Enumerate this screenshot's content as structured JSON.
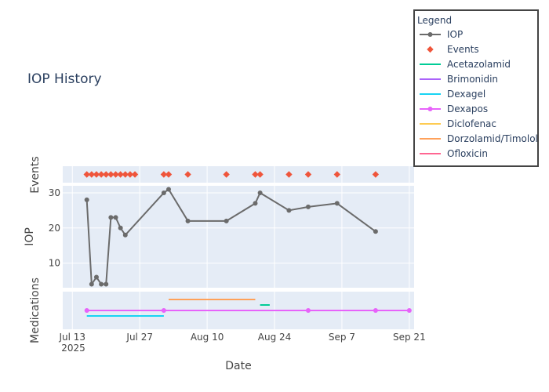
{
  "chart_data": {
    "type": "line",
    "title": "IOP History",
    "xlabel": "Date",
    "x_range": [
      "2025-07-11",
      "2025-09-22"
    ],
    "x_ticks": [
      {
        "date": "2025-07-13",
        "label": "Jul 13",
        "sublabel": "2025"
      },
      {
        "date": "2025-07-27",
        "label": "Jul 27",
        "sublabel": ""
      },
      {
        "date": "2025-08-10",
        "label": "Aug 10",
        "sublabel": ""
      },
      {
        "date": "2025-08-24",
        "label": "Aug 24",
        "sublabel": ""
      },
      {
        "date": "2025-09-07",
        "label": "Sep 7",
        "sublabel": ""
      },
      {
        "date": "2025-09-21",
        "label": "Sep 21",
        "sublabel": ""
      }
    ],
    "grid": true,
    "legend": {
      "title": "Legend",
      "position": "top-right",
      "entries": [
        "IOP",
        "Events",
        "Acetazolamid",
        "Brimonidin",
        "Dexagel",
        "Dexapos",
        "Diclofenac",
        "Dorzolamid/Timolol",
        "Ofloxicin"
      ]
    },
    "colors": {
      "IOP": "#6b6b6b",
      "Events": "#ef553b",
      "Acetazolamid": "#00cc96",
      "Brimonidin": "#ab63fa",
      "Dexagel": "#19d3f3",
      "Dexapos": "#ff6692",
      "Diclofenac": "#fecb52",
      "Dorzolamid/Timolol": "#ffa15a",
      "Ofloxicin": "#ff6692",
      "dexapos_line": "#e763fa",
      "plot_bg": "#e5ecf6",
      "grid": "#ffffff"
    },
    "panels": [
      {
        "id": "events",
        "ylabel": "Events",
        "series": [
          {
            "name": "Events",
            "mode": "markers",
            "marker": "diamond",
            "x": [
              "2025-07-16",
              "2025-07-17",
              "2025-07-18",
              "2025-07-19",
              "2025-07-20",
              "2025-07-21",
              "2025-07-22",
              "2025-07-23",
              "2025-07-24",
              "2025-07-25",
              "2025-07-26",
              "2025-08-01",
              "2025-08-02",
              "2025-08-06",
              "2025-08-14",
              "2025-08-20",
              "2025-08-21",
              "2025-08-27",
              "2025-08-31",
              "2025-09-06",
              "2025-09-14"
            ]
          }
        ]
      },
      {
        "id": "iop",
        "ylabel": "IOP",
        "ylim": [
          3,
          32
        ],
        "yticks": [
          10,
          20,
          30
        ],
        "series": [
          {
            "name": "IOP",
            "mode": "lines+markers",
            "x": [
              "2025-07-16",
              "2025-07-17",
              "2025-07-18",
              "2025-07-19",
              "2025-07-20",
              "2025-07-21",
              "2025-07-22",
              "2025-07-23",
              "2025-07-24",
              "2025-08-01",
              "2025-08-02",
              "2025-08-06",
              "2025-08-14",
              "2025-08-20",
              "2025-08-21",
              "2025-08-27",
              "2025-08-31",
              "2025-09-06",
              "2025-09-14"
            ],
            "y": [
              28,
              4,
              6,
              4,
              4,
              23,
              23,
              20,
              18,
              30,
              31,
              22,
              22,
              27,
              30,
              25,
              26,
              27,
              19
            ]
          }
        ]
      },
      {
        "id": "medications",
        "ylabel": "Medications",
        "series": [
          {
            "name": "Dorzolamid/Timolol",
            "mode": "lines",
            "x": [
              "2025-08-02",
              "2025-08-20"
            ],
            "level": 2
          },
          {
            "name": "Acetazolamid",
            "mode": "lines",
            "x": [
              "2025-08-21",
              "2025-08-23"
            ],
            "level": 1
          },
          {
            "name": "Dexapos",
            "mode": "lines+markers",
            "x": [
              "2025-07-16",
              "2025-08-01",
              "2025-08-31",
              "2025-09-14",
              "2025-09-21"
            ],
            "level": 0
          },
          {
            "name": "Dexagel",
            "mode": "lines",
            "x": [
              "2025-07-16",
              "2025-08-01"
            ],
            "level": -1
          }
        ]
      }
    ]
  }
}
